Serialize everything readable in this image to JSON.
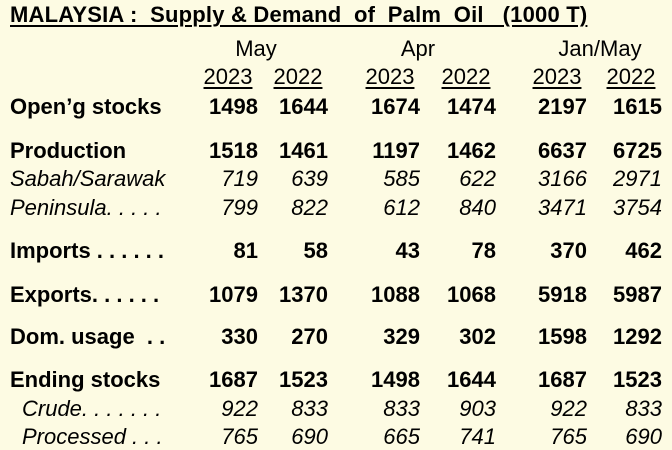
{
  "title": "MALAYSIA :  Supply & Demand  of  Palm  Oil   (1000 T)",
  "periods": [
    "May",
    "Apr",
    "Jan/May"
  ],
  "years": [
    "2023",
    "2022",
    "2023",
    "2022",
    "2023",
    "2022"
  ],
  "rows": [
    {
      "label": "Open’g stocks",
      "values": [
        "1498",
        "1644",
        "1674",
        "1474",
        "2197",
        "1615"
      ]
    },
    {
      "label": "Production",
      "values": [
        "1518",
        "1461",
        "1197",
        "1462",
        "6637",
        "6725"
      ]
    },
    {
      "label": "Sabah/Sarawak",
      "values": [
        "719",
        "639",
        "585",
        "622",
        "3166",
        "2971"
      ]
    },
    {
      "label": "Peninsula. . . . .",
      "values": [
        "799",
        "822",
        "612",
        "840",
        "3471",
        "3754"
      ]
    },
    {
      "label": "Imports . . . . . .",
      "values": [
        "81",
        "58",
        "43",
        "78",
        "370",
        "462"
      ]
    },
    {
      "label": "Exports. . . . . .",
      "values": [
        "1079",
        "1370",
        "1088",
        "1068",
        "5918",
        "5987"
      ]
    },
    {
      "label": "Dom. usage  . .",
      "values": [
        "330",
        "270",
        "329",
        "302",
        "1598",
        "1292"
      ]
    },
    {
      "label": "Ending stocks",
      "values": [
        "1687",
        "1523",
        "1498",
        "1644",
        "1687",
        "1523"
      ]
    },
    {
      "label": "Crude. . . . . . .",
      "values": [
        "922",
        "833",
        "833",
        "903",
        "922",
        "833"
      ]
    },
    {
      "label": "Processed . . .",
      "values": [
        "765",
        "690",
        "665",
        "741",
        "765",
        "690"
      ]
    }
  ]
}
